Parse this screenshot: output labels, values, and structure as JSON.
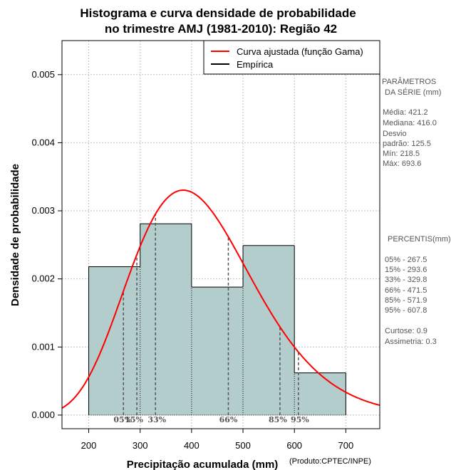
{
  "chart_data": {
    "type": "histogram",
    "title": [
      "Histograma e curva densidade de probabilidade",
      "no trimestre AMJ (1981-2010): Região 42"
    ],
    "xlabel": "Precipitação acumulada (mm)",
    "ylabel": "Densidade de probabilidade",
    "credit": "(Produto:CPTEC/INPE)",
    "xlim": [
      148,
      766
    ],
    "ylim": [
      -0.0002,
      0.0055
    ],
    "xticks": [
      200,
      300,
      400,
      500,
      600,
      700
    ],
    "yticks": [
      0.0,
      0.001,
      0.002,
      0.003,
      0.004,
      0.005
    ],
    "ytick_labels": [
      "0.000",
      "0.001",
      "0.002",
      "0.003",
      "0.004",
      "0.005"
    ],
    "grid": true,
    "bins": [
      {
        "x0": 200,
        "x1": 300,
        "density": 0.00218
      },
      {
        "x0": 300,
        "x1": 400,
        "density": 0.00281
      },
      {
        "x0": 400,
        "x1": 500,
        "density": 0.00188
      },
      {
        "x0": 500,
        "x1": 600,
        "density": 0.00249
      },
      {
        "x0": 600,
        "x1": 700,
        "density": 0.00062
      }
    ],
    "fitted_curve": {
      "distribution": "Gama",
      "mean": 421.2,
      "sd": 125.5,
      "color": "#ff0000"
    },
    "percentiles": [
      {
        "label": "05%",
        "value": 267.5
      },
      {
        "label": "15%",
        "value": 293.6
      },
      {
        "label": "33%",
        "value": 329.8
      },
      {
        "label": "66%",
        "value": 471.5
      },
      {
        "label": "85%",
        "value": 571.9
      },
      {
        "label": "95%",
        "value": 607.8
      }
    ],
    "legend": {
      "position": "top-right",
      "entries": [
        {
          "label": "Curva ajustada (função Gama)",
          "color": "#ff0000"
        },
        {
          "label": "Empírica",
          "color": "#000000"
        }
      ]
    },
    "bar_color": "#b3cccc"
  },
  "side_panel": {
    "params_title": [
      "PARÂMETROS",
      "DA SÉRIE (mm)"
    ],
    "params": [
      "Média:  421.2",
      "Mediana:  416.0",
      "Desvio",
      "padrão:  125.5",
      "Mín:  218.5",
      "Máx:  693.6"
    ],
    "percentis_title": "PERCENTIS(mm)",
    "percentis": [
      "05% -  267.5",
      "15% -  293.6",
      "33% -  329.8",
      "66% -  471.5",
      "85% -  571.9",
      "95% -  607.8"
    ],
    "stats": [
      "Curtose:  0.9",
      "Assimetria:  0.3"
    ]
  }
}
